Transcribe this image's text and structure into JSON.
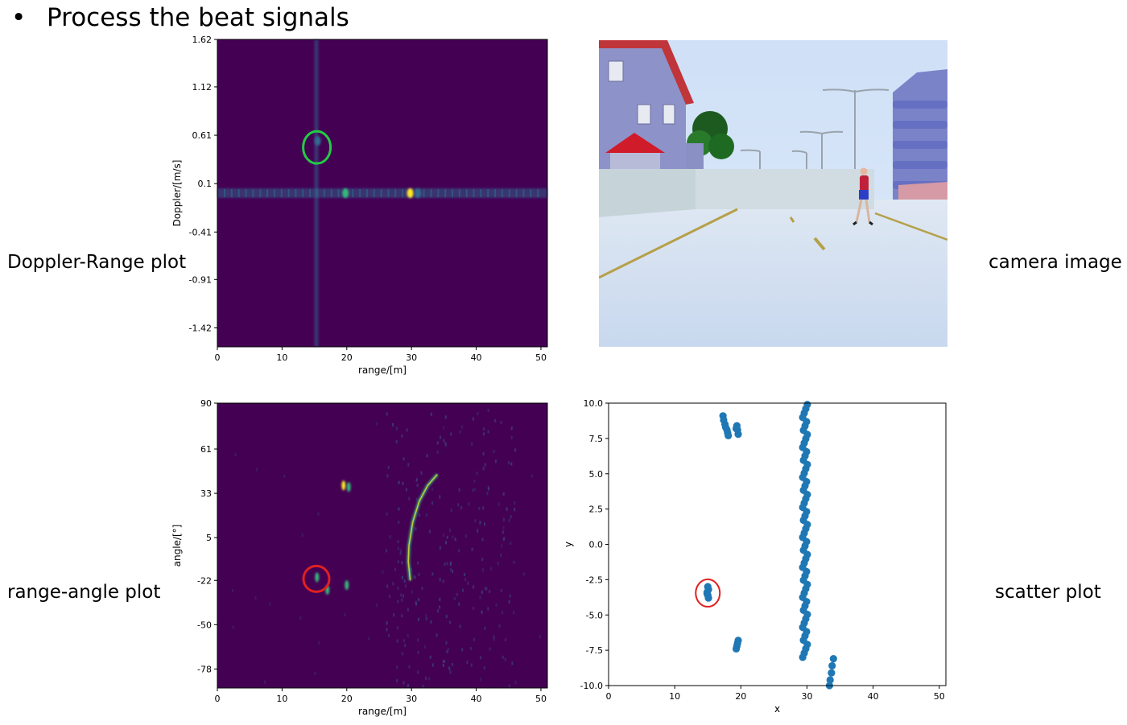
{
  "slide": {
    "title": "Process the beat signals",
    "labels": {
      "doppler_range": "Doppler-Range plot",
      "camera": "camera image",
      "range_angle": "range-angle plot",
      "scatter": "scatter plot"
    }
  },
  "colors": {
    "heatmap_background": "#440154",
    "heatmap_low": "#31688e",
    "heatmap_mid": "#35b779",
    "heatmap_high": "#fde725",
    "scatter_point": "#1f77b4",
    "highlight_green": "#22cc44",
    "highlight_red": "#e02020"
  },
  "chart_data": [
    {
      "id": "doppler_range",
      "type": "heatmap",
      "title": "",
      "xlabel": "range/[m]",
      "ylabel": "Doppler/[m/s]",
      "xlim": [
        0,
        51
      ],
      "ylim": [
        -1.62,
        1.62
      ],
      "x_ticks": [
        0,
        10,
        20,
        30,
        40,
        50
      ],
      "y_ticks": [
        1.62,
        1.12,
        0.61,
        0.1,
        -0.41,
        -0.91,
        -1.42
      ],
      "features": [
        {
          "kind": "horizontal_band",
          "doppler": 0.0,
          "x_from": 0,
          "x_to": 51,
          "intensity": 0.3
        },
        {
          "kind": "vertical_band",
          "range": 15.3,
          "doppler_from": -1.62,
          "doppler_to": 1.62,
          "intensity": 0.25
        },
        {
          "kind": "peak",
          "range": 29.8,
          "doppler": 0.0,
          "intensity": 1.0
        },
        {
          "kind": "peak",
          "range": 31.0,
          "doppler": 0.0,
          "intensity": 0.5
        },
        {
          "kind": "peak",
          "range": 19.8,
          "doppler": 0.0,
          "intensity": 0.6
        },
        {
          "kind": "peak",
          "range": 15.5,
          "doppler": 0.55,
          "intensity": 0.3
        }
      ],
      "highlight": {
        "range": 15.5,
        "doppler": 0.55,
        "color": "green"
      }
    },
    {
      "id": "range_angle",
      "type": "heatmap",
      "title": "",
      "xlabel": "range/[m]",
      "ylabel": "angle/[°]",
      "xlim": [
        0,
        51
      ],
      "ylim": [
        -90,
        90
      ],
      "x_ticks": [
        0,
        10,
        20,
        30,
        40,
        50
      ],
      "y_ticks": [
        90,
        61,
        33,
        5,
        -22,
        -50,
        -78
      ],
      "features": [
        {
          "kind": "arc",
          "points": [
            [
              29.8,
              -22
            ],
            [
              29.5,
              -10
            ],
            [
              29.6,
              0
            ],
            [
              30.2,
              15
            ],
            [
              31.2,
              28
            ],
            [
              32.5,
              38
            ],
            [
              34.0,
              45
            ]
          ],
          "intensity": 0.9
        },
        {
          "kind": "peak",
          "range": 19.5,
          "angle": 38,
          "intensity": 0.55
        },
        {
          "kind": "peak",
          "range": 20.3,
          "angle": 37,
          "intensity": 0.5
        },
        {
          "kind": "peak",
          "range": 15.4,
          "angle": -20,
          "intensity": 0.45
        },
        {
          "kind": "peak",
          "range": 17.0,
          "angle": -28,
          "intensity": 0.3
        },
        {
          "kind": "peak",
          "range": 20.0,
          "angle": -25,
          "intensity": 0.3
        }
      ],
      "highlight": {
        "range": 15.3,
        "angle": -20,
        "color": "red"
      }
    },
    {
      "id": "scatter",
      "type": "scatter",
      "title": "",
      "xlabel": "x",
      "ylabel": "y",
      "xlim": [
        0,
        51
      ],
      "ylim": [
        -10,
        10
      ],
      "x_ticks": [
        0,
        10,
        20,
        30,
        40,
        50
      ],
      "y_ticks": [
        10.0,
        7.5,
        5.0,
        2.5,
        0.0,
        -2.5,
        -5.0,
        -7.5,
        -10.0
      ],
      "clusters": [
        {
          "kind": "column",
          "x": 29.7,
          "y_from": -8.0,
          "y_to": 9.9,
          "count": 60,
          "jitter": 0.35
        },
        {
          "kind": "points",
          "xy": [
            [
              17.3,
              9.1
            ],
            [
              17.4,
              8.8
            ],
            [
              17.6,
              8.5
            ],
            [
              17.7,
              8.3
            ],
            [
              17.9,
              8.1
            ],
            [
              18.0,
              7.9
            ],
            [
              18.1,
              7.7
            ],
            [
              19.4,
              8.4
            ],
            [
              19.5,
              8.1
            ],
            [
              19.6,
              7.8
            ],
            [
              19.3,
              8.2
            ]
          ]
        },
        {
          "kind": "points",
          "xy": [
            [
              15.0,
              -3.0
            ],
            [
              15.1,
              -3.2
            ],
            [
              14.9,
              -3.4
            ],
            [
              15.0,
              -3.6
            ],
            [
              15.1,
              -3.8
            ],
            [
              14.9,
              -3.5
            ]
          ]
        },
        {
          "kind": "points",
          "xy": [
            [
              19.6,
              -6.8
            ],
            [
              19.5,
              -7.0
            ],
            [
              19.4,
              -7.2
            ],
            [
              19.3,
              -7.4
            ]
          ]
        },
        {
          "kind": "points",
          "xy": [
            [
              34.0,
              -8.1
            ],
            [
              33.8,
              -8.6
            ],
            [
              33.7,
              -9.1
            ],
            [
              33.5,
              -9.6
            ],
            [
              33.4,
              -10.0
            ]
          ]
        }
      ],
      "highlight": {
        "x": 15.0,
        "y": -3.45,
        "color": "red"
      }
    }
  ]
}
